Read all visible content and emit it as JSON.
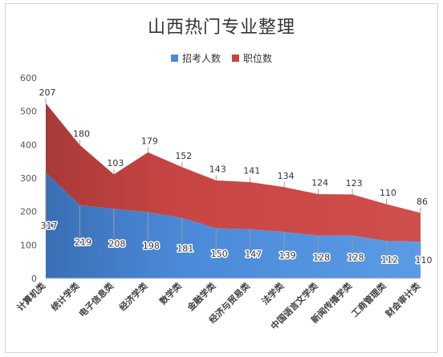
{
  "chart_data": {
    "type": "area",
    "title": "山西热门专业整理",
    "categories": [
      "计算机类",
      "统计学类",
      "电子信息类",
      "经济学类",
      "数学类",
      "金融学类",
      "经济与贸易类",
      "法学类",
      "中国语言文学类",
      "新闻传播学类",
      "工商管理类",
      "财会审计类"
    ],
    "series": [
      {
        "name": "招考人数",
        "values": [
          317,
          219,
          208,
          198,
          181,
          150,
          147,
          139,
          128,
          128,
          112,
          110
        ],
        "color": "#4a89d8"
      },
      {
        "name": "职位数",
        "values": [
          207,
          180,
          103,
          179,
          152,
          143,
          141,
          134,
          124,
          123,
          110,
          86
        ],
        "color": "#c84543"
      }
    ],
    "stacked": true,
    "ylim": [
      0,
      600
    ],
    "yticks": [
      "0",
      "100",
      "200",
      "300",
      "400",
      "500",
      "600"
    ],
    "xlabel": "",
    "ylabel": "",
    "legend": "top-center",
    "grid": false
  }
}
